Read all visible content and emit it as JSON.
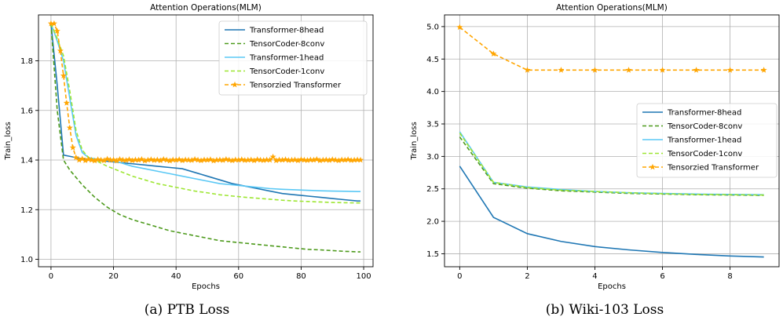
{
  "chart_data": [
    {
      "type": "line",
      "title": "Attention Operations(MLM)",
      "xlabel": "Epochs",
      "ylabel": "Train_loss",
      "caption": "(a) PTB Loss",
      "xlim": [
        -4,
        103
      ],
      "ylim": [
        0.97,
        1.985
      ],
      "xticks": [
        0,
        20,
        40,
        60,
        80,
        100
      ],
      "yticks": [
        1.0,
        1.2,
        1.4,
        1.6,
        1.8
      ],
      "tick_labels_y": [
        "1.0",
        "1.2",
        "1.4",
        "1.6",
        "1.8"
      ],
      "tick_labels_x": [
        "0",
        "20",
        "40",
        "60",
        "80",
        "100"
      ],
      "grid": true,
      "legend_position": "top-right",
      "series": [
        {
          "name": "Transformer-8head",
          "color": "#1f77b4",
          "dash": "solid",
          "marker": "none",
          "x": [
            0,
            2,
            4,
            6,
            8,
            10,
            14,
            18,
            22,
            26,
            30,
            34,
            38,
            42,
            46,
            50,
            54,
            58,
            62,
            66,
            70,
            74,
            78,
            82,
            86,
            90,
            94,
            98,
            99
          ],
          "y": [
            1.95,
            1.7,
            1.42,
            1.415,
            1.41,
            1.405,
            1.4,
            1.395,
            1.39,
            1.385,
            1.38,
            1.375,
            1.37,
            1.365,
            1.35,
            1.335,
            1.32,
            1.305,
            1.295,
            1.285,
            1.275,
            1.265,
            1.26,
            1.255,
            1.25,
            1.245,
            1.24,
            1.235,
            1.235
          ]
        },
        {
          "name": "TensorCoder-8conv",
          "color": "#4d9a1c",
          "dash": "dashed",
          "marker": "none",
          "x": [
            0,
            2,
            4,
            6,
            8,
            10,
            14,
            18,
            22,
            26,
            30,
            34,
            38,
            42,
            46,
            50,
            54,
            58,
            62,
            66,
            70,
            74,
            78,
            82,
            86,
            90,
            94,
            98,
            99
          ],
          "y": [
            1.95,
            1.6,
            1.4,
            1.36,
            1.33,
            1.3,
            1.25,
            1.21,
            1.18,
            1.16,
            1.145,
            1.13,
            1.115,
            1.105,
            1.095,
            1.085,
            1.075,
            1.07,
            1.065,
            1.06,
            1.055,
            1.05,
            1.045,
            1.04,
            1.038,
            1.035,
            1.032,
            1.03,
            1.03
          ]
        },
        {
          "name": "Transformer-1head",
          "color": "#5ac8f5",
          "dash": "solid",
          "marker": "none",
          "x": [
            0,
            2,
            4,
            6,
            8,
            10,
            12,
            14,
            18,
            22,
            26,
            30,
            34,
            38,
            42,
            46,
            50,
            54,
            58,
            62,
            66,
            70,
            74,
            78,
            82,
            86,
            90,
            94,
            98,
            99
          ],
          "y": [
            1.95,
            1.88,
            1.8,
            1.65,
            1.5,
            1.43,
            1.41,
            1.405,
            1.4,
            1.39,
            1.375,
            1.365,
            1.355,
            1.345,
            1.335,
            1.325,
            1.315,
            1.305,
            1.3,
            1.295,
            1.29,
            1.285,
            1.282,
            1.28,
            1.278,
            1.276,
            1.275,
            1.274,
            1.273,
            1.273
          ]
        },
        {
          "name": "TensorCoder-1conv",
          "color": "#9de632",
          "dash": "dashed",
          "marker": "none",
          "x": [
            0,
            2,
            4,
            6,
            8,
            10,
            12,
            14,
            18,
            22,
            26,
            30,
            34,
            38,
            42,
            46,
            50,
            54,
            58,
            62,
            66,
            70,
            74,
            78,
            82,
            86,
            90,
            94,
            98,
            99
          ],
          "y": [
            1.95,
            1.89,
            1.82,
            1.68,
            1.52,
            1.44,
            1.41,
            1.4,
            1.375,
            1.355,
            1.335,
            1.32,
            1.305,
            1.295,
            1.285,
            1.275,
            1.268,
            1.26,
            1.255,
            1.25,
            1.246,
            1.242,
            1.238,
            1.235,
            1.233,
            1.231,
            1.229,
            1.228,
            1.227,
            1.227
          ]
        },
        {
          "name": "Tensorzied Transformer",
          "color": "#ffa500",
          "dash": "dashed",
          "marker": "star",
          "x": [
            0,
            1,
            2,
            3,
            4,
            5,
            6,
            7,
            8,
            9,
            10,
            11,
            12,
            13,
            14,
            15,
            16,
            17,
            18,
            19,
            20,
            21,
            22,
            23,
            24,
            25,
            26,
            27,
            28,
            29,
            30,
            31,
            32,
            33,
            34,
            35,
            36,
            37,
            38,
            39,
            40,
            41,
            42,
            43,
            44,
            45,
            46,
            47,
            48,
            49,
            50,
            51,
            52,
            53,
            54,
            55,
            56,
            57,
            58,
            59,
            60,
            61,
            62,
            63,
            64,
            65,
            66,
            67,
            68,
            69,
            70,
            71,
            72,
            73,
            74,
            75,
            76,
            77,
            78,
            79,
            80,
            81,
            82,
            83,
            84,
            85,
            86,
            87,
            88,
            89,
            90,
            91,
            92,
            93,
            94,
            95,
            96,
            97,
            98,
            99
          ],
          "y": [
            1.95,
            1.95,
            1.92,
            1.84,
            1.74,
            1.63,
            1.53,
            1.45,
            1.41,
            1.4,
            1.405,
            1.398,
            1.403,
            1.4,
            1.397,
            1.402,
            1.4,
            1.398,
            1.404,
            1.4,
            1.401,
            1.397,
            1.403,
            1.4,
            1.399,
            1.402,
            1.398,
            1.401,
            1.4,
            1.403,
            1.397,
            1.4,
            1.402,
            1.399,
            1.401,
            1.398,
            1.403,
            1.4,
            1.397,
            1.401,
            1.4,
            1.402,
            1.398,
            1.401,
            1.4,
            1.399,
            1.403,
            1.4,
            1.398,
            1.401,
            1.4,
            1.402,
            1.397,
            1.4,
            1.401,
            1.399,
            1.403,
            1.4,
            1.398,
            1.401,
            1.4,
            1.402,
            1.399,
            1.4,
            1.401,
            1.398,
            1.402,
            1.4,
            1.399,
            1.401,
            1.4,
            1.413,
            1.398,
            1.401,
            1.4,
            1.402,
            1.399,
            1.4,
            1.401,
            1.398,
            1.402,
            1.4,
            1.399,
            1.401,
            1.4,
            1.403,
            1.398,
            1.4,
            1.401,
            1.399,
            1.402,
            1.4,
            1.398,
            1.401,
            1.4,
            1.402,
            1.399,
            1.4,
            1.401,
            1.4
          ]
        }
      ]
    },
    {
      "type": "line",
      "title": "Attention Operations(MLM)",
      "xlabel": "Epochs",
      "ylabel": "Train_loss",
      "caption": "(b) Wiki-103 Loss",
      "xlim": [
        -0.45,
        9.45
      ],
      "ylim": [
        1.3,
        5.18
      ],
      "xticks": [
        0,
        2,
        4,
        6,
        8
      ],
      "yticks": [
        1.5,
        2.0,
        2.5,
        3.0,
        3.5,
        4.0,
        4.5,
        5.0
      ],
      "tick_labels_x": [
        "0",
        "2",
        "4",
        "6",
        "8"
      ],
      "tick_labels_y": [
        "1.5",
        "2.0",
        "2.5",
        "3.0",
        "3.5",
        "4.0",
        "4.5",
        "5.0"
      ],
      "grid": true,
      "legend_position": "center-right",
      "series": [
        {
          "name": "Transformer-8head",
          "color": "#1f77b4",
          "dash": "solid",
          "marker": "none",
          "x": [
            0,
            1,
            2,
            3,
            4,
            5,
            6,
            7,
            8,
            9
          ],
          "y": [
            2.85,
            2.06,
            1.81,
            1.69,
            1.61,
            1.56,
            1.52,
            1.49,
            1.465,
            1.45
          ]
        },
        {
          "name": "TensorCoder-8conv",
          "color": "#4d9a1c",
          "dash": "dashed",
          "marker": "none",
          "x": [
            0,
            1,
            2,
            3,
            4,
            5,
            6,
            7,
            8,
            9
          ],
          "y": [
            3.3,
            2.58,
            2.51,
            2.47,
            2.45,
            2.43,
            2.42,
            2.41,
            2.405,
            2.4
          ]
        },
        {
          "name": "Transformer-1head",
          "color": "#5ac8f5",
          "dash": "solid",
          "marker": "none",
          "x": [
            0,
            1,
            2,
            3,
            4,
            5,
            6,
            7,
            8,
            9
          ],
          "y": [
            3.38,
            2.6,
            2.53,
            2.49,
            2.46,
            2.44,
            2.43,
            2.42,
            2.415,
            2.41
          ]
        },
        {
          "name": "TensorCoder-1conv",
          "color": "#9de632",
          "dash": "dashed",
          "marker": "none",
          "x": [
            0,
            1,
            2,
            3,
            4,
            5,
            6,
            7,
            8,
            9
          ],
          "y": [
            3.36,
            2.6,
            2.52,
            2.48,
            2.46,
            2.44,
            2.425,
            2.415,
            2.41,
            2.405
          ]
        },
        {
          "name": "Tensorzied Transformer",
          "color": "#ffa500",
          "dash": "dashed",
          "marker": "star",
          "x": [
            0,
            1,
            2,
            3,
            4,
            5,
            6,
            7,
            8,
            9
          ],
          "y": [
            4.99,
            4.58,
            4.33,
            4.33,
            4.33,
            4.33,
            4.33,
            4.33,
            4.33,
            4.33
          ]
        }
      ]
    }
  ]
}
